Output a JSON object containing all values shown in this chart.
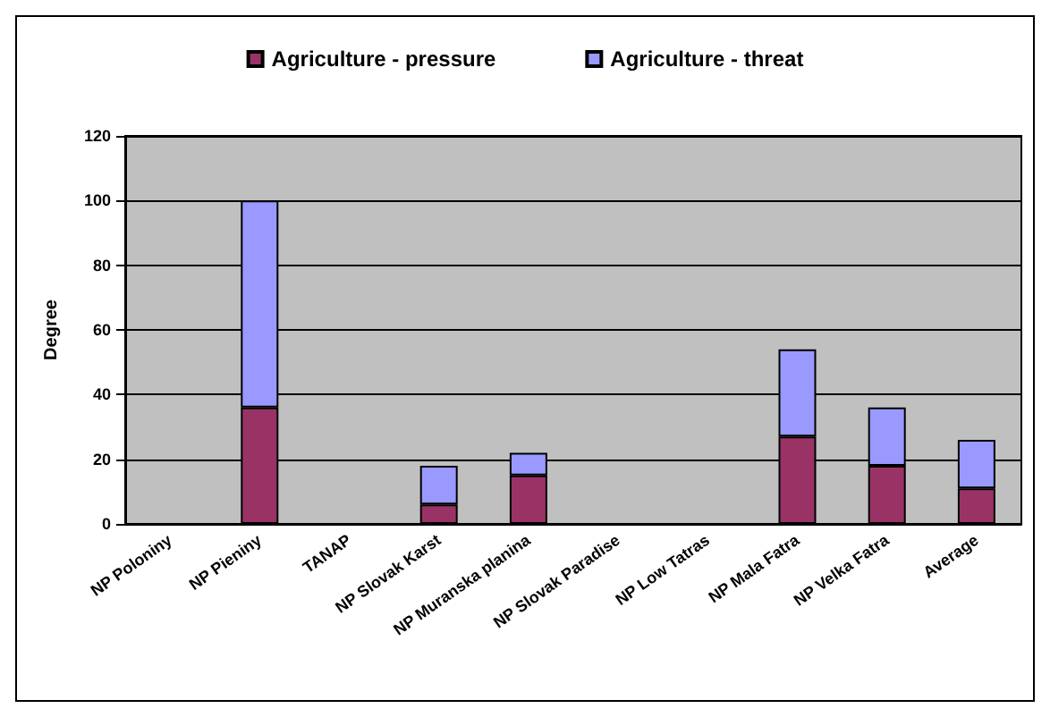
{
  "chart_data": {
    "type": "bar",
    "stacked": true,
    "ylabel": "Degree",
    "categories": [
      "NP Poloniny",
      "NP Pieniny",
      "TANAP",
      "NP Slovak Karst",
      "NP Muranska planina",
      "NP Slovak Paradise",
      "NP Low Tatras",
      "NP Mala Fatra",
      "NP Velka Fatra",
      "Average"
    ],
    "series": [
      {
        "name": "Agriculture - pressure",
        "color": "#993366",
        "values": [
          0,
          36,
          0,
          6,
          15,
          0,
          0,
          27,
          18,
          11
        ]
      },
      {
        "name": "Agriculture - threat",
        "color": "#9999ff",
        "values": [
          0,
          64,
          0,
          12,
          7,
          0,
          0,
          27,
          18,
          15
        ]
      }
    ],
    "ylim": [
      0,
      120
    ],
    "yticks": [
      0,
      20,
      40,
      60,
      80,
      100,
      120
    ],
    "grid": "y",
    "legend": "top"
  }
}
